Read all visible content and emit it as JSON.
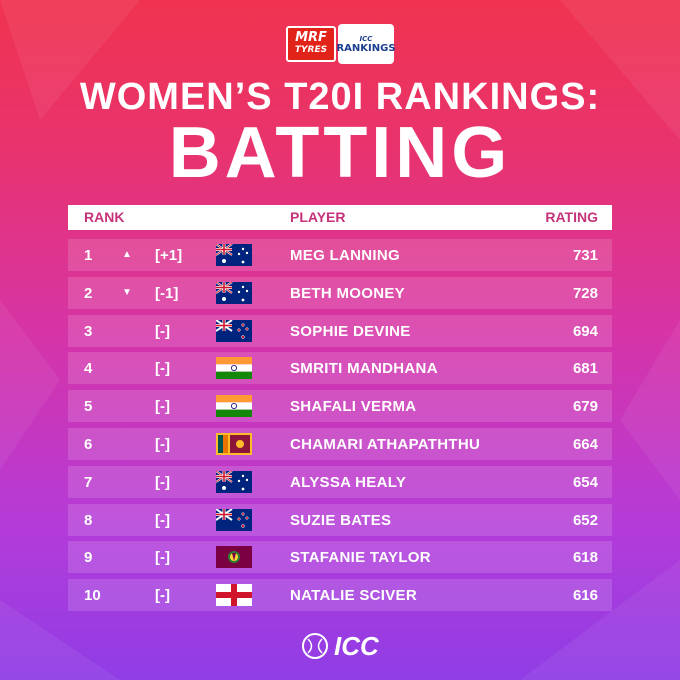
{
  "sponsor": {
    "mrf_line1": "MRF",
    "mrf_line2": "TYRES",
    "icc_small": "ICC",
    "icc_big": "RANKINGS"
  },
  "title": {
    "line1": "WOMEN’S T20I RANKINGS:",
    "line2": "BATTING"
  },
  "table": {
    "headers": {
      "rank": "RANK",
      "player": "PLAYER",
      "rating": "RATING"
    },
    "rows": [
      {
        "rank": "1",
        "arrow": "▲",
        "move": "[+1]",
        "flag": "australia-flag",
        "player": "MEG LANNING",
        "rating": "731"
      },
      {
        "rank": "2",
        "arrow": "▼",
        "move": "[-1]",
        "flag": "australia-flag",
        "player": "BETH MOONEY",
        "rating": "728"
      },
      {
        "rank": "3",
        "arrow": "",
        "move": "[-]",
        "flag": "new-zealand-flag",
        "player": "SOPHIE DEVINE",
        "rating": "694"
      },
      {
        "rank": "4",
        "arrow": "",
        "move": "[-]",
        "flag": "india-flag",
        "player": "SMRITI MANDHANA",
        "rating": "681"
      },
      {
        "rank": "5",
        "arrow": "",
        "move": "[-]",
        "flag": "india-flag",
        "player": "SHAFALI VERMA",
        "rating": "679"
      },
      {
        "rank": "6",
        "arrow": "",
        "move": "[-]",
        "flag": "sri-lanka-flag",
        "player": "CHAMARI ATHAPATHTHU",
        "rating": "664"
      },
      {
        "rank": "7",
        "arrow": "",
        "move": "[-]",
        "flag": "australia-flag",
        "player": "ALYSSA HEALY",
        "rating": "654"
      },
      {
        "rank": "8",
        "arrow": "",
        "move": "[-]",
        "flag": "new-zealand-flag",
        "player": "SUZIE BATES",
        "rating": "652"
      },
      {
        "rank": "9",
        "arrow": "",
        "move": "[-]",
        "flag": "west-indies-flag",
        "player": "STAFANIE TAYLOR",
        "rating": "618"
      },
      {
        "rank": "10",
        "arrow": "",
        "move": "[-]",
        "flag": "england-flag",
        "player": "NATALIE SCIVER",
        "rating": "616"
      }
    ]
  },
  "footer": {
    "logo_text": "ICC"
  },
  "colors": {
    "header_text": "#c5327a",
    "mrf_red": "#e2231a",
    "icc_blue": "#1b3e8f"
  }
}
